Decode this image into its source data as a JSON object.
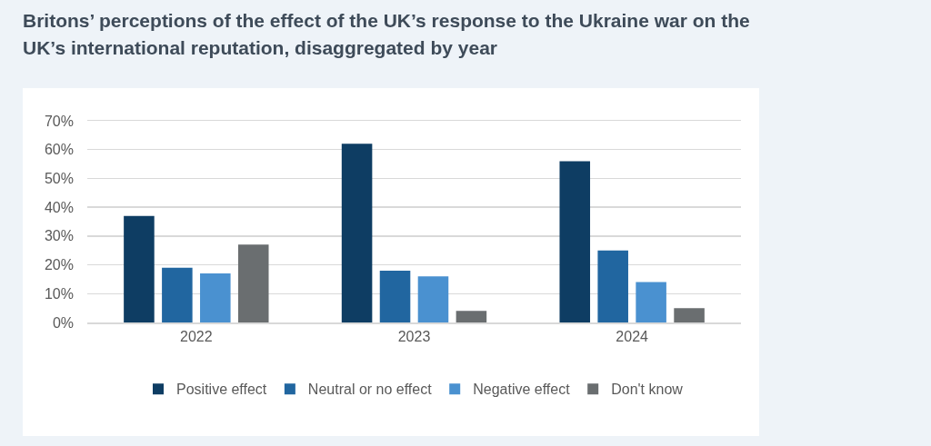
{
  "chart_data": {
    "type": "bar",
    "title": "Britons’ perceptions of the effect of the UK’s response to the Ukraine war on the UK’s international reputation, disaggregated by year",
    "categories": [
      "2022",
      "2023",
      "2024"
    ],
    "series": [
      {
        "name": "Positive effect",
        "color": "#0e3d63",
        "values": [
          37,
          62,
          56
        ]
      },
      {
        "name": "Neutral or no effect",
        "color": "#2166a0",
        "values": [
          19,
          18,
          25
        ]
      },
      {
        "name": "Negative effect",
        "color": "#4a91d0",
        "values": [
          17,
          16,
          14
        ]
      },
      {
        "name": "Don't know",
        "color": "#6a6e70",
        "values": [
          27,
          4,
          5
        ]
      }
    ],
    "ylim": [
      0,
      70
    ],
    "yticks": [
      {
        "value": 0,
        "label": "0%"
      },
      {
        "value": 10,
        "label": "10%"
      },
      {
        "value": 20,
        "label": "20%"
      },
      {
        "value": 30,
        "label": "30%"
      },
      {
        "value": 40,
        "label": "40%"
      },
      {
        "value": 50,
        "label": "50%"
      },
      {
        "value": 60,
        "label": "60%"
      },
      {
        "value": 70,
        "label": "70%"
      }
    ],
    "grid": "y",
    "legend": "bottom"
  }
}
